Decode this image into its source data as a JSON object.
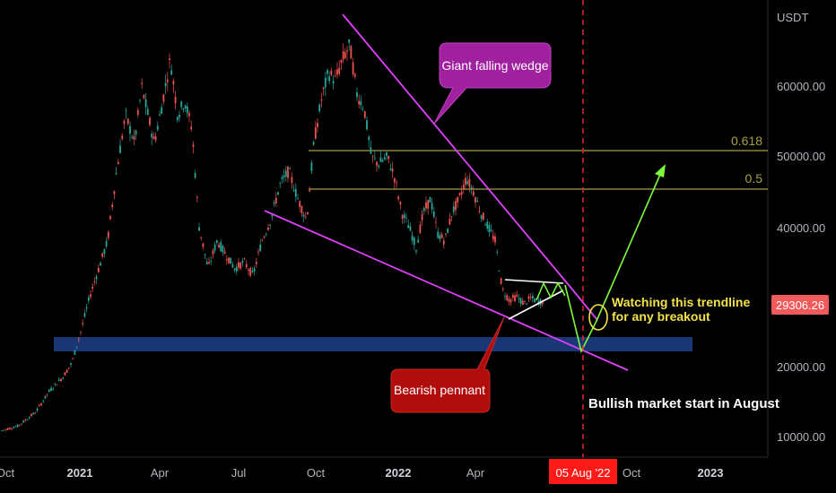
{
  "chart_data": {
    "type": "candlestick",
    "currency": "USDT",
    "x_tick_labels": [
      "Oct",
      "2021",
      "Apr",
      "Jul",
      "Oct",
      "2022",
      "Apr",
      "Oct",
      "2023"
    ],
    "y_tick_labels": [
      "60000.00",
      "50000.00",
      "40000.00",
      "20000.00",
      "10000.00"
    ],
    "current_price_label": "29306.26",
    "current_price": 29306.26,
    "date_marker_label": "05 Aug '22",
    "fib_levels": [
      {
        "label": "0.618",
        "value": 51000
      },
      {
        "label": "0.5",
        "value": 45300
      }
    ],
    "support_zone": [
      22800,
      24800
    ],
    "annotations": {
      "falling_wedge": "Giant falling wedge",
      "bearish_pennant": "Bearish pennant",
      "trendline_watch_line1": "Watching this trendline",
      "trendline_watch_line2": "for any breakout",
      "bullish_start": "Bullish market start in August"
    },
    "colors": {
      "bull_candle": "#26a69a",
      "bear_candle": "#ef5350",
      "wedge_lines": "#e040fb",
      "fib_lines": "#a7a041",
      "support_zone": "#1e3f8a",
      "projection": "#7cfc3a",
      "date_marker": "#ff2a2a",
      "price_label": "#f05a5a"
    }
  }
}
